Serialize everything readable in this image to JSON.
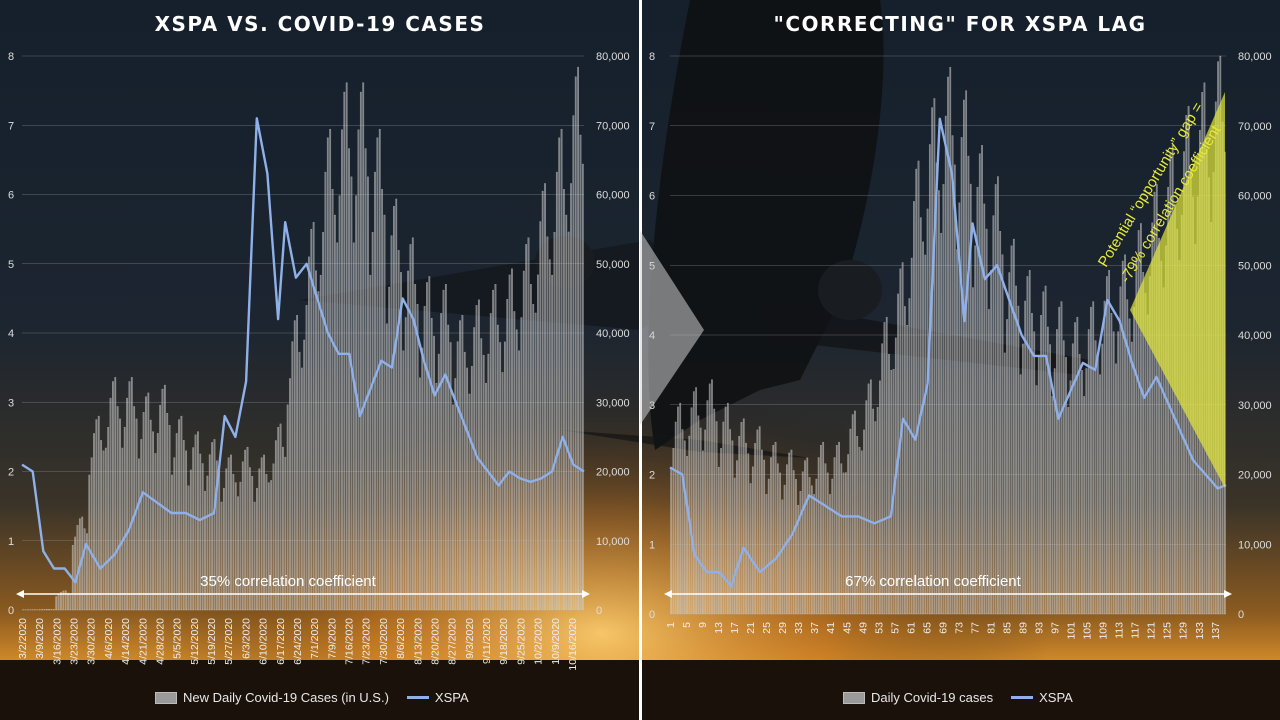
{
  "titles": {
    "left": "XSPA VS. COVID-19 CASES",
    "right": "\"CORRECTING\" FOR XSPA LAG"
  },
  "annotations": {
    "left_correlation": "35% correlation coefficient",
    "right_correlation": "67% correlation coefficient",
    "gap_line1": "Potential “opportunity” gap =",
    "gap_line2": "-79% correlation coefficient"
  },
  "legend": {
    "left_bar": "New Daily Covid-19 Cases (in U.S.)",
    "left_line": "XSPA",
    "right_bar": "Daily Covid-19 cases",
    "right_line": "XSPA"
  },
  "colors": {
    "bars": "#c8c8c8",
    "xspa_line": "#8fb0e8",
    "gap_highlight": "#e6ea3a",
    "gridline": "#9a9a9a"
  },
  "chart_data": [
    {
      "type": "bar+line",
      "title": "XSPA VS. COVID-19 CASES",
      "x_tick_labels": [
        "3/2/2020",
        "3/9/2020",
        "3/16/2020",
        "3/23/2020",
        "3/30/2020",
        "4/6/2020",
        "4/14/2020",
        "4/21/2020",
        "4/28/2020",
        "5/5/2020",
        "5/12/2020",
        "5/19/2020",
        "5/27/2020",
        "6/3/2020",
        "6/10/2020",
        "6/17/2020",
        "6/24/2020",
        "7/1/2020",
        "7/9/2020",
        "7/16/2020",
        "7/23/2020",
        "7/30/2020",
        "8/6/2020",
        "8/13/2020",
        "8/20/2020",
        "8/27/2020",
        "9/3/2020",
        "9/11/2020",
        "9/18/2020",
        "9/25/2020",
        "10/2/2020",
        "10/9/2020",
        "10/16/2020"
      ],
      "y_left": {
        "label": "XSPA",
        "ylim": [
          0,
          8
        ],
        "ticks": [
          0,
          1,
          2,
          3,
          4,
          5,
          6,
          7,
          8
        ]
      },
      "y_right": {
        "label": "New Daily Covid-19 Cases (in U.S.)",
        "ylim": [
          0,
          80000
        ],
        "ticks": [
          "0",
          "10,000",
          "20,000",
          "30,000",
          "40,000",
          "50,000",
          "60,000",
          "70,000",
          "80,000"
        ]
      },
      "series": [
        {
          "name": "New Daily Covid-19 Cases (in U.S.)",
          "kind": "bar",
          "axis": "right",
          "weekly_approx": [
            50,
            100,
            2500,
            12000,
            25000,
            30000,
            30000,
            28000,
            29000,
            25000,
            23000,
            22000,
            20000,
            21000,
            20000,
            24000,
            38000,
            50000,
            62000,
            68000,
            68000,
            62000,
            53000,
            48000,
            43000,
            42000,
            38000,
            40000,
            42000,
            44000,
            48000,
            55000,
            62000,
            70000
          ]
        },
        {
          "name": "XSPA",
          "kind": "line",
          "axis": "left",
          "points": [
            [
              0,
              2.1
            ],
            [
              3,
              2.0
            ],
            [
              6,
              0.85
            ],
            [
              9,
              0.6
            ],
            [
              12,
              0.6
            ],
            [
              15,
              0.4
            ],
            [
              18,
              0.95
            ],
            [
              22,
              0.6
            ],
            [
              26,
              0.8
            ],
            [
              30,
              1.15
            ],
            [
              34,
              1.7
            ],
            [
              38,
              1.55
            ],
            [
              42,
              1.4
            ],
            [
              46,
              1.4
            ],
            [
              50,
              1.3
            ],
            [
              54,
              1.4
            ],
            [
              57,
              2.8
            ],
            [
              60,
              2.5
            ],
            [
              63,
              3.3
            ],
            [
              66,
              7.1
            ],
            [
              69,
              6.3
            ],
            [
              72,
              4.2
            ],
            [
              74,
              5.6
            ],
            [
              77,
              4.8
            ],
            [
              80,
              5.0
            ],
            [
              83,
              4.5
            ],
            [
              86,
              4.0
            ],
            [
              89,
              3.7
            ],
            [
              92,
              3.7
            ],
            [
              95,
              2.8
            ],
            [
              98,
              3.2
            ],
            [
              101,
              3.6
            ],
            [
              104,
              3.5
            ],
            [
              107,
              4.5
            ],
            [
              110,
              4.2
            ],
            [
              113,
              3.6
            ],
            [
              116,
              3.1
            ],
            [
              119,
              3.4
            ],
            [
              122,
              3.0
            ],
            [
              125,
              2.6
            ],
            [
              128,
              2.2
            ],
            [
              131,
              2.0
            ],
            [
              134,
              1.8
            ],
            [
              137,
              2.0
            ],
            [
              140,
              1.9
            ],
            [
              143,
              1.85
            ],
            [
              146,
              1.9
            ],
            [
              149,
              2.0
            ],
            [
              152,
              2.5
            ],
            [
              155,
              2.1
            ],
            [
              158,
              2.0
            ]
          ]
        }
      ],
      "annotation": "35% correlation coefficient"
    },
    {
      "type": "bar+line",
      "title": "\"CORRECTING\" FOR XSPA LAG",
      "x_tick_labels": [
        "1",
        "5",
        "9",
        "13",
        "17",
        "21",
        "25",
        "29",
        "33",
        "37",
        "41",
        "45",
        "49",
        "53",
        "57",
        "61",
        "65",
        "69",
        "73",
        "77",
        "81",
        "85",
        "89",
        "93",
        "97",
        "101",
        "105",
        "109",
        "113",
        "117",
        "121",
        "125",
        "129",
        "133",
        "137"
      ],
      "y_left": {
        "label": "XSPA",
        "ylim": [
          0,
          8
        ],
        "ticks": [
          0,
          1,
          2,
          3,
          4,
          5,
          6,
          7,
          8
        ]
      },
      "y_right": {
        "label": "Daily Covid-19 cases",
        "ylim": [
          0,
          80000
        ],
        "ticks": [
          "0",
          "10,000",
          "20,000",
          "30,000",
          "40,000",
          "50,000",
          "60,000",
          "70,000",
          "80,000"
        ]
      },
      "series": [
        {
          "name": "Daily Covid-19 cases",
          "kind": "bar",
          "axis": "right",
          "weekly_approx": [
            27000,
            29000,
            30000,
            27000,
            25000,
            24000,
            22000,
            21000,
            20000,
            22000,
            22000,
            26000,
            30000,
            38000,
            45000,
            58000,
            66000,
            70000,
            67000,
            60000,
            56000,
            48000,
            44000,
            42000,
            40000,
            38000,
            40000,
            44000,
            46000,
            50000,
            55000,
            60000,
            65000,
            68000,
            72000
          ]
        },
        {
          "name": "XSPA",
          "kind": "line",
          "axis": "left",
          "points": [
            [
              1,
              2.1
            ],
            [
              4,
              2.0
            ],
            [
              7,
              0.85
            ],
            [
              10,
              0.6
            ],
            [
              13,
              0.6
            ],
            [
              16,
              0.4
            ],
            [
              19,
              0.95
            ],
            [
              23,
              0.6
            ],
            [
              27,
              0.8
            ],
            [
              31,
              1.15
            ],
            [
              35,
              1.7
            ],
            [
              39,
              1.55
            ],
            [
              43,
              1.4
            ],
            [
              47,
              1.4
            ],
            [
              51,
              1.3
            ],
            [
              55,
              1.4
            ],
            [
              58,
              2.8
            ],
            [
              61,
              2.5
            ],
            [
              64,
              3.3
            ],
            [
              67,
              7.1
            ],
            [
              70,
              6.3
            ],
            [
              73,
              4.2
            ],
            [
              75,
              5.6
            ],
            [
              78,
              4.8
            ],
            [
              81,
              5.0
            ],
            [
              84,
              4.5
            ],
            [
              87,
              4.0
            ],
            [
              90,
              3.7
            ],
            [
              93,
              3.7
            ],
            [
              96,
              2.8
            ],
            [
              99,
              3.2
            ],
            [
              102,
              3.6
            ],
            [
              105,
              3.5
            ],
            [
              108,
              4.5
            ],
            [
              111,
              4.2
            ],
            [
              114,
              3.6
            ],
            [
              117,
              3.1
            ],
            [
              120,
              3.4
            ],
            [
              123,
              3.0
            ],
            [
              126,
              2.6
            ],
            [
              129,
              2.2
            ],
            [
              132,
              2.0
            ],
            [
              135,
              1.8
            ],
            [
              137,
              1.85
            ]
          ]
        }
      ],
      "annotation": "67% correlation coefficient"
    }
  ]
}
